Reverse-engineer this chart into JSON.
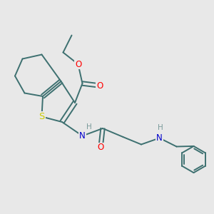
{
  "background_color": "#e8e8e8",
  "bond_color": "#3d7070",
  "bond_width": 1.4,
  "atom_colors": {
    "O": "#ff0000",
    "S": "#cccc00",
    "N": "#0000cc",
    "H": "#7a9a9a"
  },
  "font_size": 8.5,
  "figsize": [
    3.0,
    3.0
  ],
  "dpi": 100,
  "xlim": [
    0,
    10
  ],
  "ylim": [
    0,
    10
  ]
}
